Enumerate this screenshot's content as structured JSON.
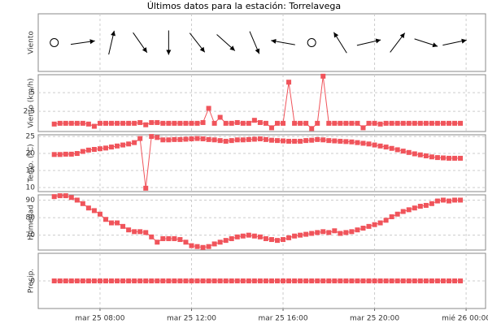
{
  "title": "Últimos datos para la estación: Torrelavega",
  "chart_data": [
    {
      "type": "vector",
      "ylabel": "Viento",
      "color": "#000000",
      "x": [
        6,
        7.25,
        8.5,
        9.75,
        11,
        12.25,
        13.5,
        14.75,
        16,
        17.25,
        18.5,
        19.75,
        21,
        22.25,
        23.5
      ],
      "values": [
        null,
        82,
        13,
        145,
        180,
        142,
        132,
        157,
        280,
        null,
        328,
        77,
        37,
        108,
        78
      ]
    },
    {
      "type": "line",
      "ylabel": "Viento (km/h)",
      "color": "#f0545b",
      "ylim": [
        -0.2,
        7.4
      ],
      "yticks": [
        {
          "value": 2.5,
          "label": "2,5"
        },
        5
      ],
      "grid": true,
      "values": [
        0.8,
        0.9,
        0.9,
        0.9,
        0.9,
        0.9,
        0.8,
        0.5,
        0.9,
        0.9,
        0.9,
        0.9,
        0.9,
        0.9,
        0.9,
        1.0,
        0.7,
        1.0,
        1.0,
        0.9,
        0.9,
        0.9,
        0.9,
        0.9,
        0.9,
        0.9,
        1.0,
        2.9,
        0.9,
        1.7,
        0.9,
        0.9,
        1.0,
        0.9,
        0.9,
        1.3,
        1.0,
        0.9,
        0.3,
        0.9,
        0.9,
        6.4,
        0.9,
        0.9,
        0.9,
        0.2,
        0.9,
        7.2,
        0.9,
        0.9,
        0.9,
        0.9,
        0.9,
        0.9,
        0.3,
        0.9,
        0.9,
        0.8,
        0.9,
        0.9,
        0.9,
        0.9,
        0.9,
        0.9,
        0.9,
        0.9,
        0.9,
        0.9,
        0.9,
        0.9,
        0.9,
        0.9
      ]
    },
    {
      "type": "line",
      "ylabel": "Temp. (ºC)",
      "color": "#f0545b",
      "ylim": [
        8.8,
        25.5
      ],
      "yticks": [
        10,
        15,
        20,
        25
      ],
      "grid": true,
      "values": [
        19.7,
        19.7,
        19.8,
        19.8,
        20.0,
        20.6,
        21.0,
        21.2,
        21.4,
        21.6,
        21.9,
        22.2,
        22.5,
        22.8,
        23.2,
        24.4,
        9.8,
        25.0,
        24.7,
        24.0,
        24.0,
        24.1,
        24.1,
        24.2,
        24.3,
        24.4,
        24.3,
        24.1,
        24.0,
        23.8,
        23.6,
        23.8,
        24.0,
        24.0,
        24.1,
        24.2,
        24.3,
        24.1,
        23.9,
        23.8,
        23.7,
        23.6,
        23.6,
        23.6,
        23.8,
        23.9,
        24.1,
        24.0,
        23.8,
        23.7,
        23.6,
        23.5,
        23.4,
        23.2,
        23.0,
        22.8,
        22.5,
        22.2,
        21.9,
        21.5,
        21.1,
        20.7,
        20.3,
        19.9,
        19.6,
        19.3,
        19.0,
        18.8,
        18.7,
        18.6,
        18.6,
        18.6
      ]
    },
    {
      "type": "line",
      "ylabel": "Humedad",
      "color": "#f0545b",
      "ylim": [
        61.5,
        93
      ],
      "yticks": [
        70,
        80,
        90
      ],
      "grid": true,
      "values": [
        92.0,
        92.5,
        92.5,
        91.5,
        90.0,
        88.0,
        85.5,
        84.0,
        82.0,
        79.0,
        77.0,
        77.0,
        75.0,
        73.0,
        72.0,
        72.0,
        71.5,
        69.0,
        66.0,
        68.0,
        68.0,
        68.0,
        67.5,
        66.0,
        64.0,
        63.5,
        63.0,
        63.5,
        65.0,
        66.0,
        67.0,
        68.0,
        69.0,
        69.5,
        70.0,
        69.5,
        69.0,
        68.0,
        67.5,
        67.0,
        67.5,
        68.5,
        69.5,
        70.0,
        70.5,
        71.0,
        71.5,
        72.0,
        71.5,
        72.5,
        71.0,
        71.5,
        72.0,
        73.0,
        74.0,
        75.0,
        76.0,
        77.0,
        78.5,
        80.5,
        82.0,
        83.5,
        84.5,
        85.5,
        86.5,
        87.0,
        88.0,
        89.5,
        90.0,
        89.5,
        90.0,
        90.0
      ]
    },
    {
      "type": "line",
      "ylabel": "Precip.",
      "color": "#f0545b",
      "ylim": [
        -1,
        1
      ],
      "yticks": [
        0
      ],
      "grid": true,
      "xlim": [
        5.3,
        24.85
      ],
      "xticks": [
        {
          "value": 8,
          "label": "mar 25 08:00"
        },
        {
          "value": 12,
          "label": "mar 25 12:00"
        },
        {
          "value": 16,
          "label": "mar 25 16:00"
        },
        {
          "value": 20,
          "label": "mar 25 20:00"
        },
        {
          "value": 24,
          "label": "mié 26 00:00"
        }
      ],
      "x": [
        6,
        6.25,
        6.5,
        6.75,
        7,
        7.25,
        7.5,
        7.75,
        8,
        8.25,
        8.5,
        8.75,
        9,
        9.25,
        9.5,
        9.75,
        10,
        10.25,
        10.5,
        10.75,
        11,
        11.25,
        11.5,
        11.75,
        12,
        12.25,
        12.5,
        12.75,
        13,
        13.25,
        13.5,
        13.75,
        14,
        14.25,
        14.5,
        14.75,
        15,
        15.25,
        15.5,
        15.75,
        16,
        16.25,
        16.5,
        16.75,
        17,
        17.25,
        17.5,
        17.75,
        18,
        18.25,
        18.5,
        18.75,
        19,
        19.25,
        19.5,
        19.75,
        20,
        20.25,
        20.5,
        20.75,
        21,
        21.25,
        21.5,
        21.75,
        22,
        22.25,
        22.5,
        22.75,
        23,
        23.25,
        23.5,
        23.75
      ],
      "values": [
        0,
        0,
        0,
        0,
        0,
        0,
        0,
        0,
        0,
        0,
        0,
        0,
        0,
        0,
        0,
        0,
        0,
        0,
        0,
        0,
        0,
        0,
        0,
        0,
        0,
        0,
        0,
        0,
        0,
        0,
        0,
        0,
        0,
        0,
        0,
        0,
        0,
        0,
        0,
        0,
        0,
        0,
        0,
        0,
        0,
        0,
        0,
        0,
        0,
        0,
        0,
        0,
        0,
        0,
        0,
        0,
        0,
        0,
        0,
        0,
        0,
        0,
        0,
        0,
        0,
        0,
        0,
        0,
        0,
        0,
        0,
        0
      ]
    }
  ]
}
